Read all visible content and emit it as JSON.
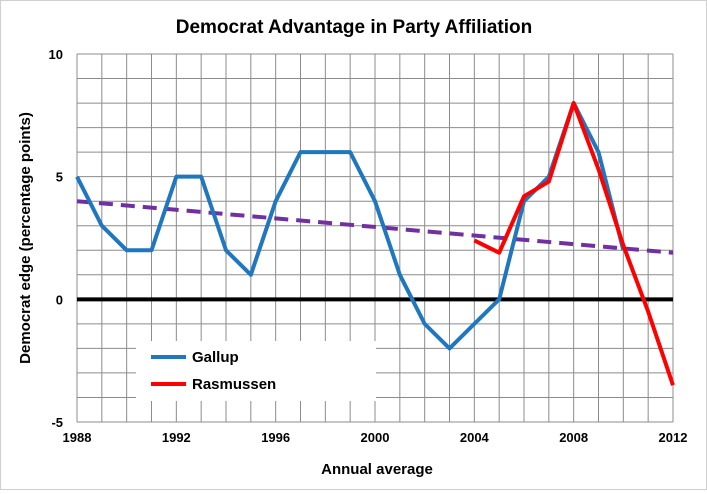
{
  "chart_data": {
    "type": "line",
    "title": "Democrat Advantage in Party Affiliation",
    "xlabel": "Annual average",
    "ylabel": "Democrat edge (percentage points)",
    "xlim": [
      1988,
      2012
    ],
    "ylim": [
      -5,
      10
    ],
    "x_ticks": [
      "1988",
      "1992",
      "1996",
      "2000",
      "2004",
      "2008",
      "2012"
    ],
    "y_ticks": [
      "-5",
      "0",
      "5",
      "10"
    ],
    "grid": true,
    "legend_position": "bottom-left",
    "series": [
      {
        "name": "Gallup",
        "color": "#1f77c0",
        "x": [
          1988,
          1989,
          1990,
          1991,
          1992,
          1993,
          1994,
          1995,
          1996,
          1997,
          1998,
          1999,
          2000,
          2001,
          2002,
          2003,
          2004,
          2005,
          2006,
          2007,
          2008,
          2009,
          2010
        ],
        "values": [
          5,
          3,
          2,
          2,
          5,
          5,
          2,
          1,
          4,
          6,
          6,
          6,
          4,
          1,
          -1,
          -2,
          -1,
          0,
          4,
          5,
          8,
          6,
          2
        ]
      },
      {
        "name": "Rasmussen",
        "color": "#ff0000",
        "x": [
          2004,
          2005,
          2006,
          2007,
          2008,
          2009,
          2010,
          2011,
          2012
        ],
        "values": [
          2.4,
          1.9,
          4.2,
          4.8,
          8,
          5.3,
          2.2,
          -0.5,
          -3.5
        ]
      }
    ],
    "trendline": {
      "color": "#7030a0",
      "x": [
        1988,
        2012
      ],
      "values": [
        4.0,
        1.9
      ]
    }
  }
}
